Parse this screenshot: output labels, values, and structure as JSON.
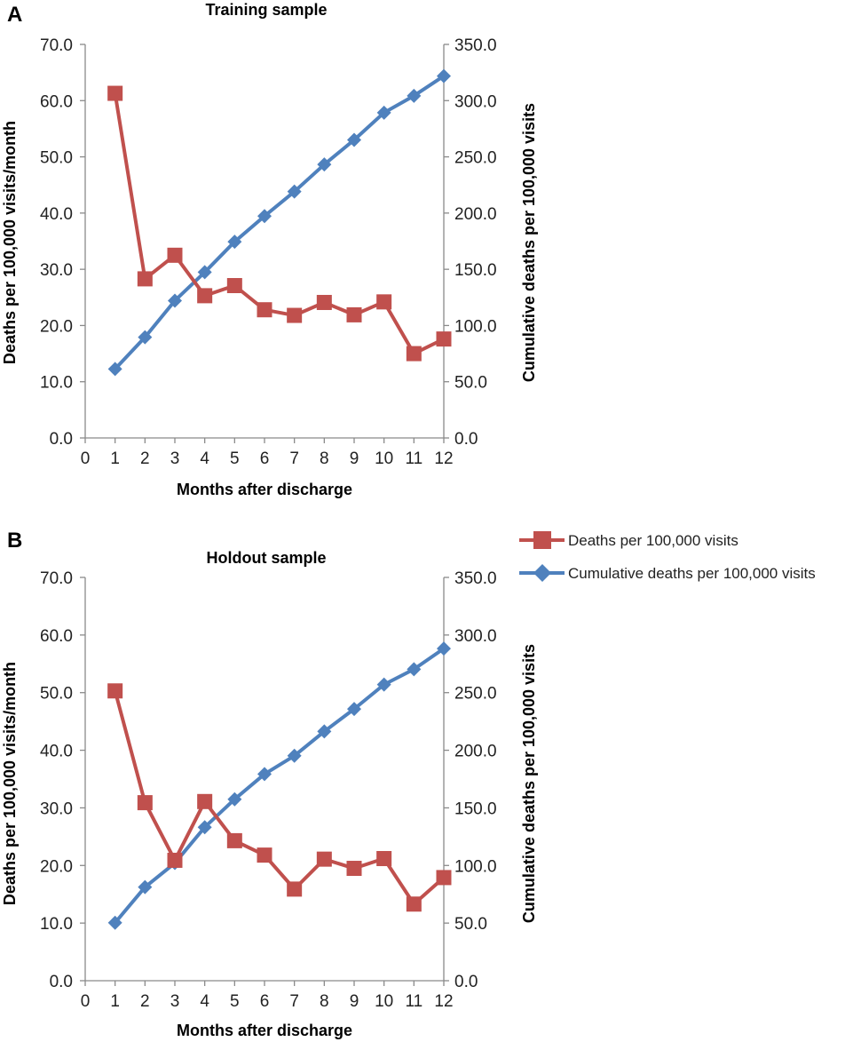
{
  "legend": {
    "deaths_label": "Deaths per 100,000 visits",
    "cumulative_label": "Cumulative deaths per 100,000 visits"
  },
  "colors": {
    "deaths": "#c0504d",
    "cumulative": "#4f81bd"
  },
  "chart_data": [
    {
      "panel": "A",
      "type": "line",
      "title": "Training sample",
      "xlabel": "Months after discharge",
      "ylabel": "Deaths per 100,000 visits/month",
      "y2label": "Cumulative deaths per 100,000 visits",
      "xlim": [
        0,
        12
      ],
      "ylim": [
        0,
        70
      ],
      "y2lim": [
        0,
        350
      ],
      "x_ticks": [
        "0",
        "1",
        "2",
        "3",
        "4",
        "5",
        "6",
        "7",
        "8",
        "9",
        "10",
        "11",
        "12"
      ],
      "y_ticks": [
        "0.0",
        "10.0",
        "20.0",
        "30.0",
        "40.0",
        "50.0",
        "60.0",
        "70.0"
      ],
      "y2_ticks": [
        "0.0",
        "50.0",
        "100.0",
        "150.0",
        "200.0",
        "250.0",
        "300.0",
        "350.0"
      ],
      "x": [
        1,
        2,
        3,
        4,
        5,
        6,
        7,
        8,
        9,
        10,
        11,
        12
      ],
      "series": [
        {
          "name": "Deaths per 100,000 visits",
          "axis": "left",
          "marker": "square",
          "values": [
            61.3,
            28.3,
            32.5,
            25.3,
            27.1,
            22.8,
            21.8,
            24.1,
            21.9,
            24.2,
            15.0,
            17.6
          ]
        },
        {
          "name": "Cumulative deaths per 100,000 visits",
          "axis": "right",
          "marker": "diamond",
          "values": [
            61.3,
            89.6,
            122.1,
            147.4,
            174.5,
            197.3,
            219.1,
            243.2,
            265.1,
            289.3,
            304.3,
            321.9
          ]
        }
      ]
    },
    {
      "panel": "B",
      "type": "line",
      "title": "Holdout sample",
      "xlabel": "Months after discharge",
      "ylabel": "Deaths per 100,000 visits/month",
      "y2label": "Cumulative deaths per 100,000 visits",
      "xlim": [
        0,
        12
      ],
      "ylim": [
        0,
        70
      ],
      "y2lim": [
        0,
        350
      ],
      "x_ticks": [
        "0",
        "1",
        "2",
        "3",
        "4",
        "5",
        "6",
        "7",
        "8",
        "9",
        "10",
        "11",
        "12"
      ],
      "y_ticks": [
        "0.0",
        "10.0",
        "20.0",
        "30.0",
        "40.0",
        "50.0",
        "60.0",
        "70.0"
      ],
      "y2_ticks": [
        "0.0",
        "50.0",
        "100.0",
        "150.0",
        "200.0",
        "250.0",
        "300.0",
        "350.0"
      ],
      "x": [
        1,
        2,
        3,
        4,
        5,
        6,
        7,
        8,
        9,
        10,
        11,
        12
      ],
      "series": [
        {
          "name": "Deaths per 100,000 visits",
          "axis": "left",
          "marker": "square",
          "values": [
            50.3,
            30.9,
            20.9,
            31.1,
            24.3,
            21.8,
            15.9,
            21.1,
            19.5,
            21.2,
            13.3,
            17.9
          ]
        },
        {
          "name": "Cumulative deaths per 100,000 visits",
          "axis": "right",
          "marker": "diamond",
          "values": [
            50.3,
            81.2,
            102.1,
            133.2,
            157.5,
            179.3,
            195.2,
            216.3,
            235.8,
            257.0,
            270.3,
            288.2
          ]
        }
      ]
    }
  ]
}
